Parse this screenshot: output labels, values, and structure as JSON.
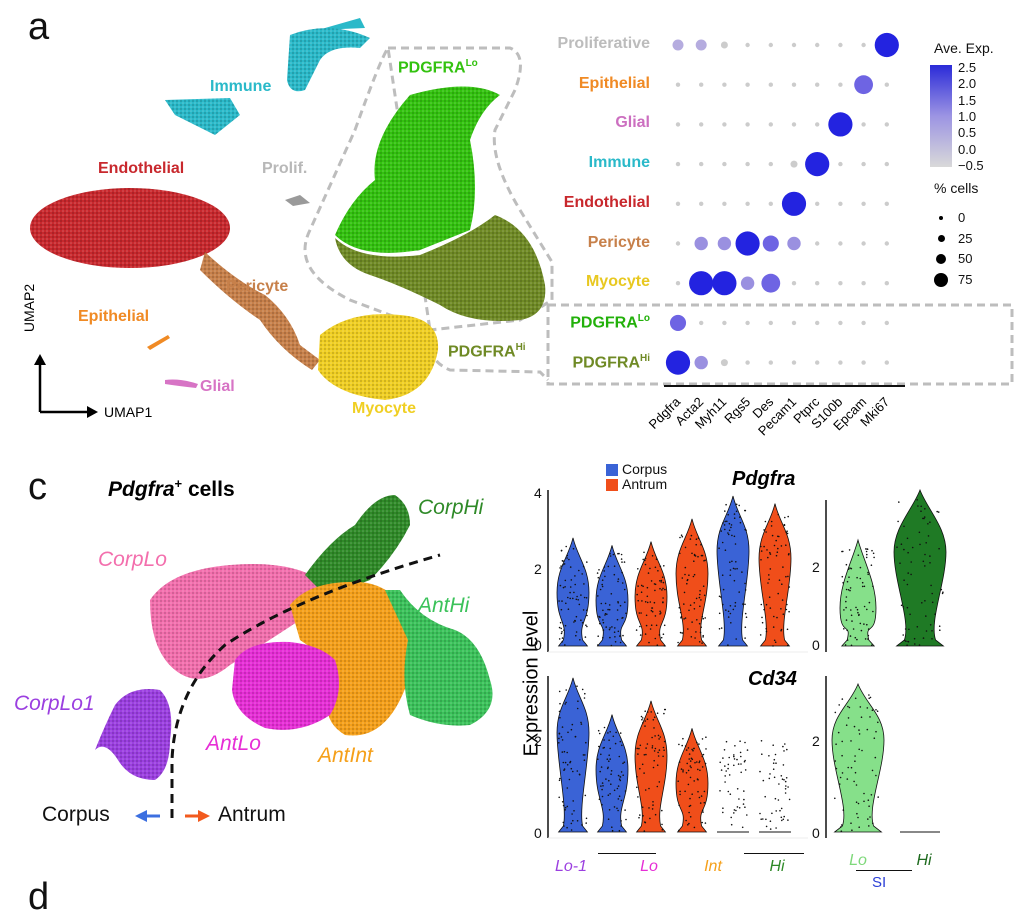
{
  "panel_a": {
    "letter": "a",
    "umap_axis_y": "UMAP2",
    "umap_axis_x": "UMAP1",
    "clusters": {
      "immune": "Immune",
      "endothelial": "Endothelial",
      "prolif": "Prolif.",
      "epithelial": "Epithelial",
      "pericyte": "Pericyte",
      "glial": "Glial",
      "myocyte": "Myocyte",
      "pdgfra_lo_base": "PDGFRA",
      "pdgfra_lo_sup": "Lo",
      "pdgfra_hi_base": "PDGFRA",
      "pdgfra_hi_sup": "Hi"
    },
    "colors": {
      "immune": "#2ab9c9",
      "endothelial": "#c8282d",
      "prolif": "#b8b8b8",
      "epithelial": "#f08a24",
      "pericyte": "#c7804a",
      "glial": "#d774c5",
      "myocyte": "#f0cf23",
      "pdgfra_lo": "#33c20f",
      "pdgfra_hi": "#6f8a25"
    }
  },
  "dot_plot": {
    "legend_title": "Ave. Exp.",
    "colorbar_ticks": [
      "2.5",
      "2.0",
      "1.5",
      "1.0",
      "0.5",
      "0.0",
      "−0.5"
    ],
    "size_title": "% cells",
    "size_ticks": [
      "0",
      "25",
      "50",
      "75"
    ],
    "rows": [
      {
        "base": "Proliferative",
        "sup": "",
        "color": "#bcbcbc"
      },
      {
        "base": "Epithelial",
        "sup": "",
        "color": "#f08a24"
      },
      {
        "base": "Glial",
        "sup": "",
        "color": "#cc6fc0"
      },
      {
        "base": "Immune",
        "sup": "",
        "color": "#2ab9c9"
      },
      {
        "base": "Endothelial",
        "sup": "",
        "color": "#c8282d"
      },
      {
        "base": "Pericyte",
        "sup": "",
        "color": "#c7804a"
      },
      {
        "base": "Myocyte",
        "sup": "",
        "color": "#e8c820"
      },
      {
        "base": "PDGFRA",
        "sup": "Lo",
        "color": "#22b00a"
      },
      {
        "base": "PDGFRA",
        "sup": "Hi",
        "color": "#6f8a25"
      }
    ],
    "genes": [
      "Pdgfra",
      "Acta2",
      "Myh11",
      "Rgs5",
      "Des",
      "Pecam1",
      "Ptprc",
      "S100b",
      "Epcam",
      "Mki67"
    ]
  },
  "panel_c": {
    "letter": "c",
    "title_gene": "Pdgfra",
    "title_sup": "+",
    "title_rest": " cells",
    "clusters": {
      "corp_hi": "CorpHi",
      "corp_lo": "CorpLo",
      "ant_hi": "AntHi",
      "corp_lo1": "CorpLo1",
      "ant_lo": "AntLo",
      "ant_int": "AntInt"
    },
    "colors": {
      "corp_hi": "#2f8a28",
      "corp_lo": "#f36fad",
      "ant_hi": "#3bc25a",
      "corp_lo1": "#9b3fe0",
      "ant_lo": "#e62ed6",
      "ant_int": "#f5a01a"
    },
    "corpus_label": "Corpus",
    "antrum_label": "Antrum",
    "corpus_arrow_color": "#3c6fe0",
    "antrum_arrow_color": "#f25a1e"
  },
  "violin": {
    "legend": [
      {
        "label": "Corpus",
        "color": "#3a63d6"
      },
      {
        "label": "Antrum",
        "color": "#f04e1a"
      }
    ],
    "gene1": "Pdgfra",
    "gene2": "Cd34",
    "y_axis_label": "Expression level",
    "y_ticks_top": [
      "4",
      "2",
      "0"
    ],
    "y_ticks_bottom": [
      "2",
      "0"
    ],
    "right_ticks_top": [
      "2",
      "0"
    ],
    "right_ticks_bottom": [
      "2",
      "0"
    ],
    "groups": [
      {
        "label": "Lo-1",
        "color": "#9b3fe0"
      },
      {
        "label": "Lo",
        "color": "#e62ed6"
      },
      {
        "label": "Int",
        "color": "#f5a01a"
      },
      {
        "label": "Hi",
        "color": "#2f8a28"
      }
    ],
    "si_groups": [
      {
        "label": "Lo",
        "color": "#7ed87a"
      },
      {
        "label": "Hi",
        "color": "#1f6b1f"
      }
    ],
    "si_label": "SI",
    "si_color": "#2b3fd6",
    "violin_corpus_color": "#3a63d6",
    "violin_antrum_color": "#f04e1a",
    "si_lo_color": "#86e08a",
    "si_hi_color": "#1f7a25",
    "top_series": {
      "medians": [
        1.4,
        1.2,
        1.3,
        1.9,
        2.5,
        2.3
      ]
    },
    "bottom_series": {
      "medians": [
        2.2,
        1.4,
        1.7,
        1.1,
        0.0,
        0.0
      ]
    }
  },
  "panel_d": {
    "letter": "d"
  }
}
